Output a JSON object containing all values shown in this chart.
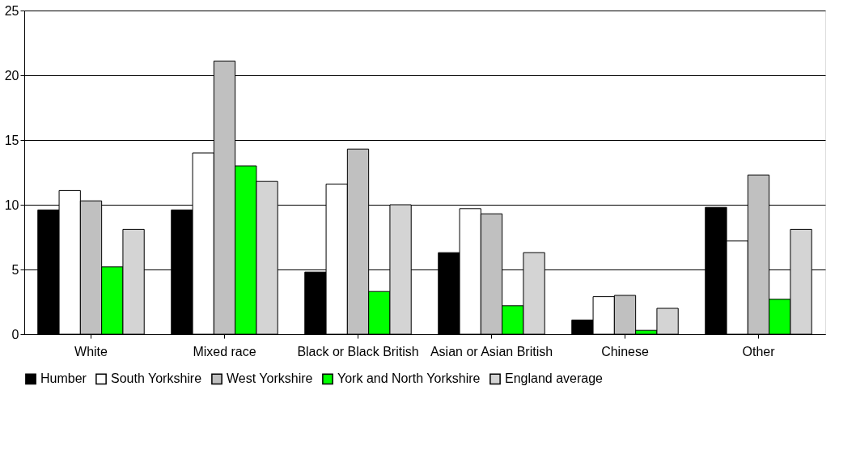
{
  "chart_data": {
    "type": "bar",
    "categories": [
      "White",
      "Mixed race",
      "Black or Black British",
      "Asian or Asian British",
      "Chinese",
      "Other"
    ],
    "series": [
      {
        "name": "Humber",
        "color": "#000000",
        "values": [
          9.6,
          9.6,
          4.8,
          6.3,
          1.1,
          9.8
        ]
      },
      {
        "name": "South Yorkshire",
        "color": "#ffffff",
        "values": [
          11.1,
          14.0,
          11.6,
          9.7,
          2.9,
          7.2
        ]
      },
      {
        "name": "West Yorkshire",
        "color": "#c0c0c0",
        "values": [
          10.3,
          21.1,
          14.3,
          9.3,
          3.0,
          12.3
        ]
      },
      {
        "name": "York and North Yorkshire",
        "color": "#00ff00",
        "values": [
          5.2,
          13.0,
          3.3,
          2.2,
          0.3,
          2.7
        ]
      },
      {
        "name": "England average",
        "color": "#d4d4d4",
        "values": [
          8.1,
          11.8,
          10.0,
          6.3,
          2.0,
          8.1
        ]
      }
    ],
    "ylim": [
      0,
      25
    ],
    "yticks": [
      0,
      5,
      10,
      15,
      20,
      25
    ],
    "grid": "y",
    "legend": "bottom"
  }
}
